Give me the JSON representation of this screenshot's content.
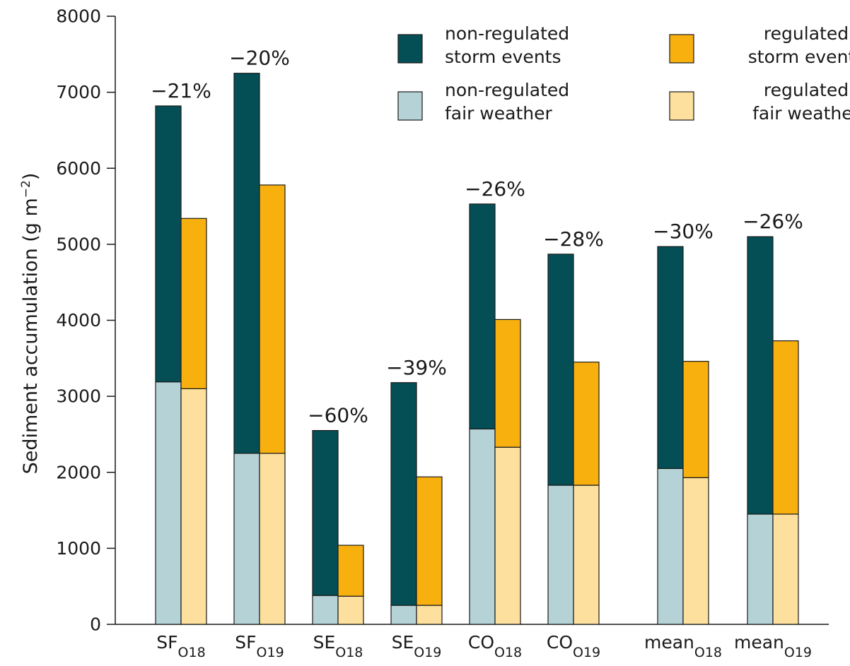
{
  "chart_data": {
    "type": "bar",
    "stacked": true,
    "ylabel": "Sediment accumulation (g m",
    "ylabel_sup": "−2",
    "ylabel_close": ")",
    "ylim": [
      0,
      8000
    ],
    "yticks": [
      0,
      1000,
      2000,
      3000,
      4000,
      5000,
      6000,
      7000,
      8000
    ],
    "categories": [
      {
        "base": "SF",
        "sub": "O18"
      },
      {
        "base": "SF",
        "sub": "O19"
      },
      {
        "base": "SE",
        "sub": "O18"
      },
      {
        "base": "SE",
        "sub": "O19"
      },
      {
        "base": "CO",
        "sub": "O18"
      },
      {
        "base": "CO",
        "sub": "O19"
      },
      {
        "base": "mean",
        "sub": "O18"
      },
      {
        "base": "mean",
        "sub": "O19"
      }
    ],
    "series": [
      {
        "name": "non-regulated fair weather",
        "group": "non-regulated",
        "color": "#b5d3d6",
        "values": [
          3190,
          2250,
          380,
          250,
          2570,
          1830,
          2050,
          1450
        ]
      },
      {
        "name": "non-regulated storm events",
        "group": "non-regulated",
        "color": "#034f55",
        "values": [
          3630,
          5000,
          2170,
          2930,
          2960,
          3040,
          2920,
          3650
        ]
      },
      {
        "name": "regulated fair weather",
        "group": "regulated",
        "color": "#fde09e",
        "values": [
          3100,
          2250,
          370,
          250,
          2330,
          1830,
          1930,
          1450
        ]
      },
      {
        "name": "regulated storm events",
        "group": "regulated",
        "color": "#f8b00f",
        "values": [
          2240,
          3530,
          670,
          1690,
          1680,
          1620,
          1530,
          2280
        ]
      }
    ],
    "annotations": [
      "−21%",
      "−20%",
      "−60%",
      "−39%",
      "−26%",
      "−28%",
      "−30%",
      "−26%"
    ],
    "legend": {
      "placement": "top-right",
      "items": [
        {
          "line1": "non-regulated",
          "line2": "storm events",
          "color": "#034f55"
        },
        {
          "line1": "regulated",
          "line2": "storm events",
          "color": "#f8b00f"
        },
        {
          "line1": "non-regulated",
          "line2": "fair weather",
          "color": "#b5d3d6"
        },
        {
          "line1": "regulated",
          "line2": "fair weather",
          "color": "#fde09e"
        }
      ]
    },
    "grid": false
  }
}
